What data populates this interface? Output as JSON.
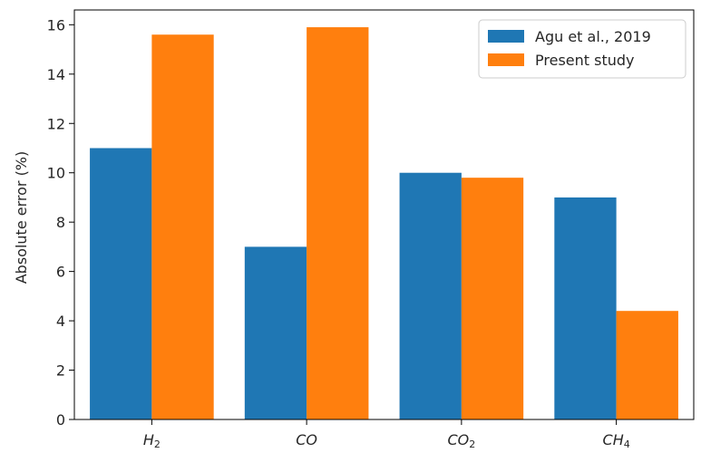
{
  "chart_data": {
    "type": "bar",
    "categories": [
      {
        "base": "H",
        "sub": "2"
      },
      {
        "base": "CO",
        "sub": ""
      },
      {
        "base": "CO",
        "sub": "2"
      },
      {
        "base": "CH",
        "sub": "4"
      }
    ],
    "series": [
      {
        "name": "Agu et al., 2019",
        "color": "#1f77b4",
        "values": [
          11.0,
          7.0,
          10.0,
          9.0
        ]
      },
      {
        "name": "Present study",
        "color": "#ff7f0e",
        "values": [
          15.6,
          15.9,
          9.8,
          4.4
        ]
      }
    ],
    "ylabel": "Absolute error (%)",
    "xlabel": "",
    "title": "",
    "ylim": [
      0,
      16.6
    ],
    "yticks": [
      0,
      2,
      4,
      6,
      8,
      10,
      12,
      14,
      16
    ],
    "grid": false,
    "legend": "top-right"
  }
}
